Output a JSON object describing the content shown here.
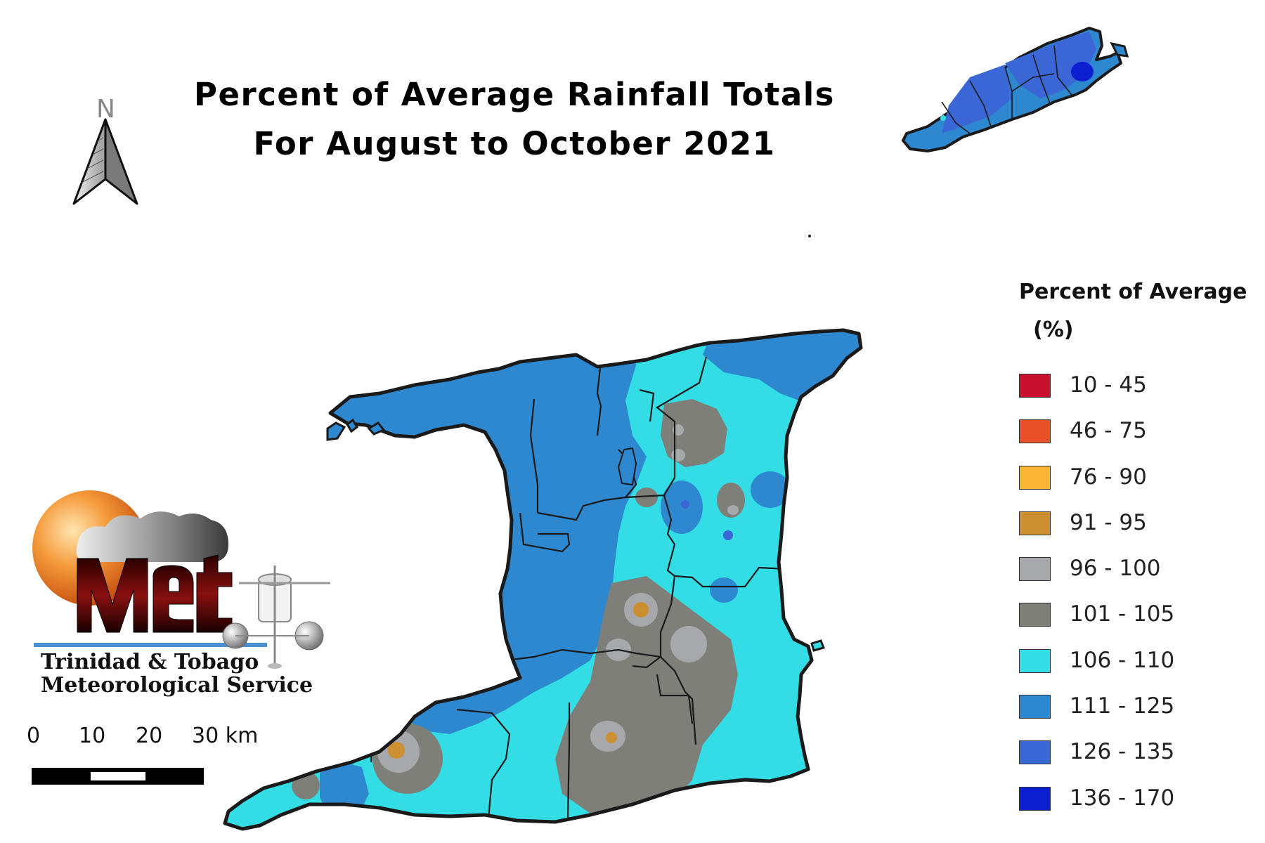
{
  "title": {
    "line1": "Percent of Average Rainfall Totals",
    "line2": "For August to October 2021"
  },
  "north_arrow": {
    "label": "N",
    "icon": "north-arrow-icon"
  },
  "legend": {
    "title": "Percent of Average",
    "unit": "(%)",
    "classes": [
      {
        "label": "10 - 45",
        "color": "#c8102e"
      },
      {
        "label": "46 - 75",
        "color": "#e8502a"
      },
      {
        "label": "76 - 90",
        "color": "#fbb733"
      },
      {
        "label": "91 - 95",
        "color": "#cc9033"
      },
      {
        "label": "96 - 100",
        "color": "#a6a8ab"
      },
      {
        "label": "101 - 105",
        "color": "#7f7f7a"
      },
      {
        "label": "106 - 110",
        "color": "#33dde5"
      },
      {
        "label": "111 - 125",
        "color": "#2e88d0"
      },
      {
        "label": "126 - 135",
        "color": "#3a66d6"
      },
      {
        "label": "136 - 170",
        "color": "#0b1ed0"
      }
    ]
  },
  "scale_bar": {
    "labels": [
      "0",
      "10",
      "20",
      "30 km"
    ]
  },
  "logo": {
    "wordmark": "Met",
    "line1": "Trinidad & Tobago",
    "line2": "Meteorological Service"
  },
  "colors": {
    "outline": "#1a1a1a",
    "c_106_110": "#33dde5",
    "c_111_125": "#2e88d0",
    "c_126_135": "#3a66d6",
    "c_136_170": "#0b1ed0",
    "c_101_105": "#7f7f7a",
    "c_96_100": "#a6a8ab",
    "c_91_95": "#cc9033"
  }
}
